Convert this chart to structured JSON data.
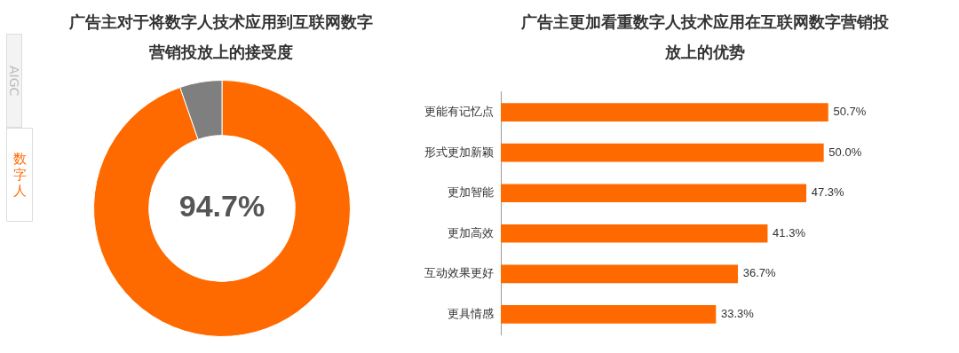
{
  "chart_data": [
    {
      "type": "other",
      "annotations": [
        "AIGC",
        "数字人"
      ]
    },
    {
      "type": "donut",
      "title": "广告主对于将数字人技术应用到互联网数字营销投放上的接受度",
      "categories": [
        null,
        null
      ],
      "values": [
        94.7,
        5.3
      ],
      "colors": [
        "#ff6a00",
        "#7f7f7f"
      ],
      "value_labels": [
        "94.7%",
        null
      ],
      "legend": false
    },
    {
      "type": "bar",
      "orientation": "horizontal",
      "title": "广告主更加看重数字人技术应用在互联网数字营销投放上的优势",
      "categories": [
        "更能有记忆点",
        "形式更加新颖",
        "更加智能",
        "更加高效",
        "互动效果更好",
        "更具情感"
      ],
      "values": [
        50.7,
        50.0,
        47.3,
        41.3,
        36.7,
        33.3
      ],
      "color": "#ff6a00",
      "value_labels": [
        "50.7%",
        "50.0%",
        "47.3%",
        "41.3%",
        "36.7%",
        "33.3%"
      ],
      "tick_labels": "y",
      "grid": false,
      "legend": false
    }
  ]
}
